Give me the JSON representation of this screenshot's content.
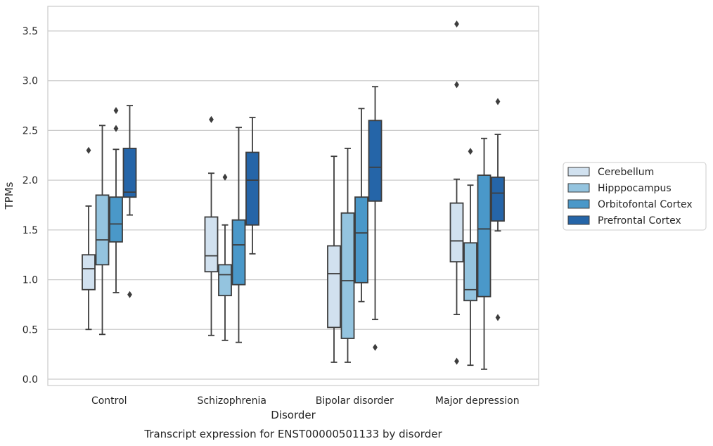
{
  "caption": "Transcript expression for ENST00000501133 by disorder",
  "chart_data": {
    "type": "box",
    "xlabel": "Disorder",
    "ylabel": "TPMs",
    "ylim": [
      -0.05,
      3.75
    ],
    "yticks": [
      0.0,
      0.5,
      1.0,
      1.5,
      2.0,
      2.5,
      3.0,
      3.5
    ],
    "grid": true,
    "legend_position": "right",
    "categories": [
      "Control",
      "Schizophrenia",
      "Bipolar disorder",
      "Major depression"
    ],
    "series": [
      {
        "name": "Cerebellum",
        "color": "#d1e1ef",
        "boxes": [
          {
            "whisker_low": 0.5,
            "q1": 0.9,
            "median": 1.11,
            "q3": 1.25,
            "whisker_high": 1.74,
            "outliers": [
              2.3
            ]
          },
          {
            "whisker_low": 0.44,
            "q1": 1.08,
            "median": 1.24,
            "q3": 1.63,
            "whisker_high": 2.07,
            "outliers": [
              2.61
            ]
          },
          {
            "whisker_low": 0.17,
            "q1": 0.52,
            "median": 1.06,
            "q3": 1.34,
            "whisker_high": 2.24,
            "outliers": []
          },
          {
            "whisker_low": 0.65,
            "q1": 1.18,
            "median": 1.39,
            "q3": 1.77,
            "whisker_high": 2.01,
            "outliers": [
              3.57,
              2.96,
              0.18
            ]
          }
        ]
      },
      {
        "name": "Hipppocampus",
        "color": "#94c4df",
        "boxes": [
          {
            "whisker_low": 0.45,
            "q1": 1.15,
            "median": 1.4,
            "q3": 1.85,
            "whisker_high": 2.55,
            "outliers": []
          },
          {
            "whisker_low": 0.39,
            "q1": 0.84,
            "median": 1.05,
            "q3": 1.15,
            "whisker_high": 1.55,
            "outliers": [
              2.03
            ]
          },
          {
            "whisker_low": 0.17,
            "q1": 0.41,
            "median": 0.99,
            "q3": 1.67,
            "whisker_high": 2.32,
            "outliers": []
          },
          {
            "whisker_low": 0.14,
            "q1": 0.79,
            "median": 0.9,
            "q3": 1.37,
            "whisker_high": 1.95,
            "outliers": [
              2.29
            ]
          }
        ]
      },
      {
        "name": "Orbitofontal Cortex",
        "color": "#4a98c9",
        "boxes": [
          {
            "whisker_low": 0.87,
            "q1": 1.38,
            "median": 1.56,
            "q3": 1.83,
            "whisker_high": 2.31,
            "outliers": [
              2.7,
              2.52
            ]
          },
          {
            "whisker_low": 0.37,
            "q1": 0.95,
            "median": 1.35,
            "q3": 1.6,
            "whisker_high": 2.53,
            "outliers": []
          },
          {
            "whisker_low": 0.78,
            "q1": 0.97,
            "median": 1.47,
            "q3": 1.83,
            "whisker_high": 2.72,
            "outliers": []
          },
          {
            "whisker_low": 0.1,
            "q1": 0.83,
            "median": 1.51,
            "q3": 2.05,
            "whisker_high": 2.42,
            "outliers": []
          }
        ]
      },
      {
        "name": "Prefrontal Cortex",
        "color": "#2565a8",
        "boxes": [
          {
            "whisker_low": 1.65,
            "q1": 1.83,
            "median": 1.88,
            "q3": 2.32,
            "whisker_high": 2.75,
            "outliers": [
              0.85
            ]
          },
          {
            "whisker_low": 1.26,
            "q1": 1.55,
            "median": 2.0,
            "q3": 2.28,
            "whisker_high": 2.63,
            "outliers": []
          },
          {
            "whisker_low": 0.6,
            "q1": 1.79,
            "median": 2.13,
            "q3": 2.6,
            "whisker_high": 2.94,
            "outliers": [
              0.32
            ]
          },
          {
            "whisker_low": 1.49,
            "q1": 1.59,
            "median": 1.87,
            "q3": 2.03,
            "whisker_high": 2.46,
            "outliers": [
              2.79,
              0.62
            ]
          }
        ]
      }
    ]
  }
}
